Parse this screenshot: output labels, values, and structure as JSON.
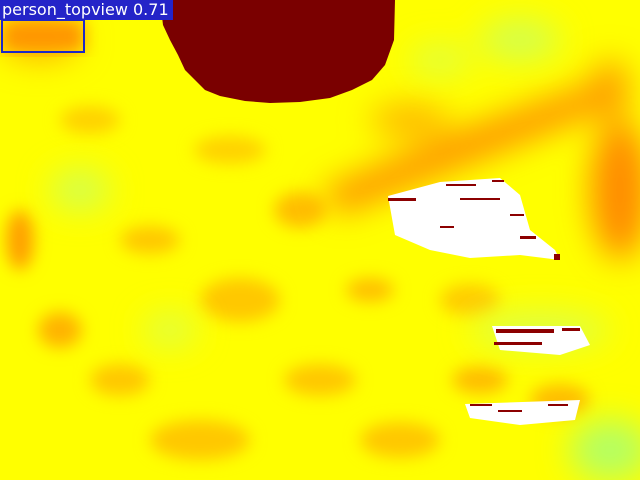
{
  "detection": {
    "class_name": "person_topview",
    "confidence": "0.71",
    "box_color": "#1e28c8",
    "label_background": "#2424c8"
  },
  "palette": {
    "base": "#ffff00",
    "warm": "#ffc800",
    "hot": "#ff8c00",
    "cool": "#b4ff64",
    "object": "#7a0000"
  }
}
